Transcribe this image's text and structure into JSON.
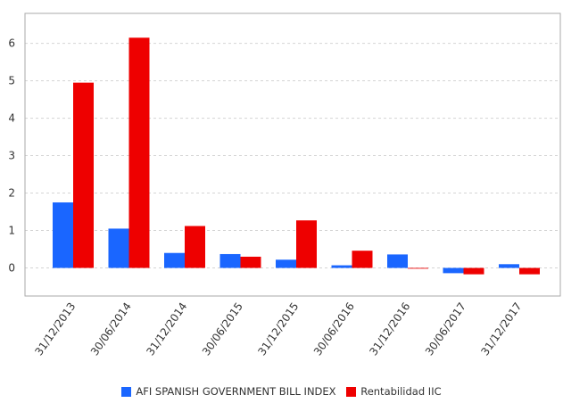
{
  "chart_data": {
    "type": "bar",
    "categories": [
      "31/12/2013",
      "30/06/2014",
      "31/12/2014",
      "30/06/2015",
      "31/12/2015",
      "30/06/2016",
      "31/12/2016",
      "30/06/2017",
      "31/12/2017"
    ],
    "series": [
      {
        "name": "AFI SPANISH GOVERNMENT BILL INDEX",
        "color": "#1a66ff",
        "values": [
          1.75,
          1.05,
          0.4,
          0.37,
          0.22,
          0.07,
          0.36,
          -0.14,
          0.1
        ]
      },
      {
        "name": "Rentabilidad IIC",
        "color": "#ee0000",
        "values": [
          4.95,
          6.15,
          1.12,
          0.3,
          1.27,
          0.46,
          -0.02,
          -0.17,
          -0.17
        ]
      }
    ],
    "yticks": [
      0,
      1,
      2,
      3,
      4,
      5,
      6
    ],
    "ylim": [
      -0.75,
      6.8
    ],
    "grid": true,
    "legend_position": "bottom"
  }
}
